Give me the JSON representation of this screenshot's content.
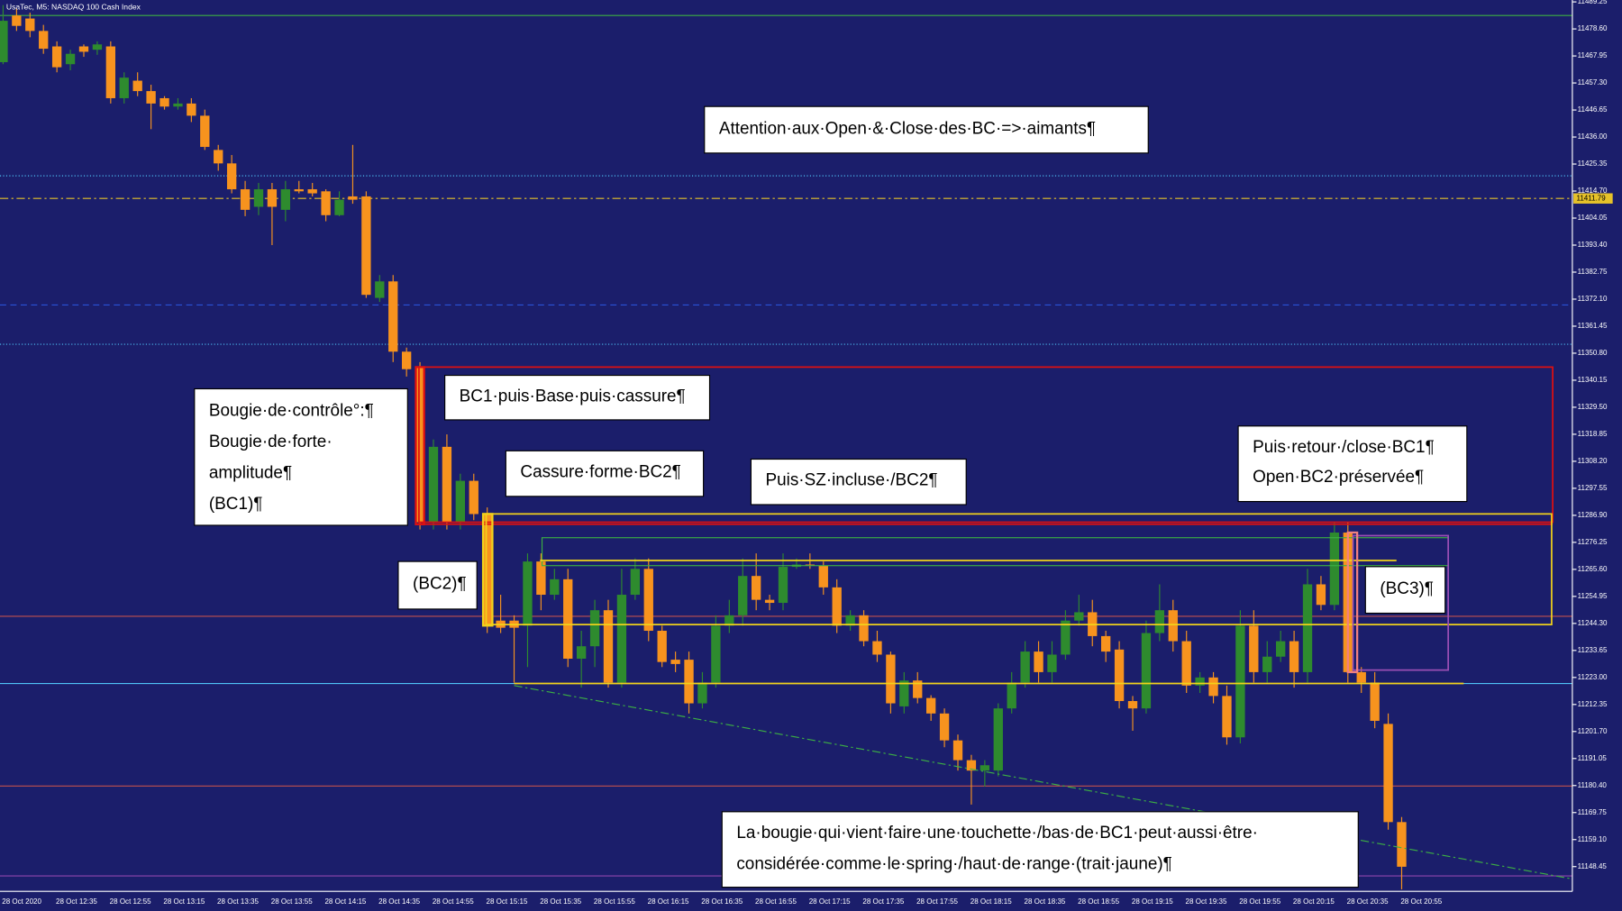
{
  "chart_data": {
    "type": "candlestick",
    "title": "UsaTec, M5: NASDAQ 100 Cash Index",
    "up_color": "#2e8b2e",
    "down_color": "#f7931e",
    "last_price": 11411.79,
    "last_price_color": "#e6c229",
    "ylim": [
      11138.7,
      11490.0
    ],
    "yticks": [
      11489.25,
      {
        "value": 11478.6,
        "label": "11478.60"
      },
      11467.95,
      {
        "value": 11457.3,
        "label": "11457.30"
      },
      11446.65,
      {
        "value": 11436,
        "label": "11436.00"
      },
      11425.35,
      {
        "value": 11414.7,
        "label": "11414.70"
      },
      11404.05,
      {
        "value": 11393.4,
        "label": "11393.40"
      },
      11382.75,
      {
        "value": 11372.1,
        "label": "11372.10"
      },
      11361.45,
      {
        "value": 11350.8,
        "label": "11350.80"
      },
      11340.15,
      {
        "value": 11329.5,
        "label": "11329.50"
      },
      11318.85,
      {
        "value": 11308.2,
        "label": "11308.20"
      },
      11297.55,
      {
        "value": 11286.9,
        "label": "11286.90"
      },
      11276.25,
      {
        "value": 11265.6,
        "label": "11265.60"
      },
      11254.95,
      {
        "value": 11244.3,
        "label": "11244.30"
      },
      11233.65,
      {
        "value": 11223,
        "label": "11223.00"
      },
      11212.35,
      {
        "value": 11201.7,
        "label": "11201.70"
      },
      11191.05,
      {
        "value": 11180.4,
        "label": "11180.40"
      },
      11169.75,
      {
        "value": 11159.1,
        "label": "11159.10"
      },
      11148.45
    ],
    "levels": [
      {
        "value": 11483.9,
        "color": "#3cb043",
        "dash": "solid"
      },
      {
        "value": 11420.7,
        "color": "#4fc3f7",
        "dash": "dotted"
      },
      {
        "value": 11369.8,
        "color": "#2a52d8",
        "dash": "dashed"
      },
      {
        "value": 11354.3,
        "color": "#4fc3f7",
        "dash": "dotted"
      },
      {
        "value": 11247.1,
        "color": "#c0504d",
        "dash": "solid"
      },
      {
        "value": 11220.6,
        "color": "#4fc3f7",
        "dash": "solid"
      },
      {
        "value": 11180.2,
        "color": "#c0504d",
        "dash": "solid"
      },
      {
        "value": 11144.8,
        "color": "#8e44ad",
        "dash": "solid"
      }
    ],
    "categories": [
      "28 Oct 2020",
      null,
      null,
      null,
      "28 Oct 12:35",
      null,
      null,
      null,
      "28 Oct 12:55",
      null,
      null,
      null,
      "28 Oct 13:15",
      null,
      null,
      null,
      "28 Oct 13:35",
      null,
      null,
      null,
      "28 Oct 13:55",
      null,
      null,
      null,
      "28 Oct 14:15",
      null,
      null,
      null,
      "28 Oct 14:35",
      null,
      null,
      null,
      "28 Oct 14:55",
      null,
      null,
      null,
      "28 Oct 15:15",
      null,
      null,
      null,
      "28 Oct 15:35",
      null,
      null,
      null,
      "28 Oct 15:55",
      null,
      null,
      null,
      "28 Oct 16:15",
      null,
      null,
      null,
      "28 Oct 16:35",
      null,
      null,
      null,
      "28 Oct 16:55",
      null,
      null,
      null,
      "28 Oct 17:15",
      null,
      null,
      null,
      "28 Oct 17:35",
      null,
      null,
      null,
      "28 Oct 17:55",
      null,
      null,
      null,
      "28 Oct 18:15",
      null,
      null,
      null,
      "28 Oct 18:35",
      null,
      null,
      null,
      "28 Oct 18:55",
      null,
      null,
      null,
      "28 Oct 19:15",
      null,
      null,
      null,
      "28 Oct 19:35",
      null,
      null,
      null,
      "28 Oct 19:55",
      null,
      null,
      null,
      "28 Oct 20:15",
      null,
      null,
      null,
      "28 Oct 20:35",
      null,
      null,
      null,
      "28 Oct 20:55"
    ],
    "open": [
      11465.5,
      11483.9,
      11482.7,
      11477.8,
      11471.7,
      11464.7,
      11471.7,
      11470.4,
      11471.7,
      11451.3,
      11458.2,
      11454.1,
      11451.3,
      11448.0,
      11449.2,
      11444.4,
      11430.9,
      11425.6,
      11415.4,
      11408.5,
      11415.4,
      11407.3,
      11415.4,
      11415.4,
      11414.6,
      11405.2,
      11412.6,
      11412.6,
      11372.6,
      11379.1,
      11351.4,
      11345.3,
      11284.2,
      11313.9,
      11284.2,
      11300.5,
      11287.4,
      11245.4,
      11245.4,
      11243.4,
      11268.7,
      11255.6,
      11261.7,
      11230.4,
      11235.3,
      11249.5,
      11221.0,
      11255.6,
      11265.8,
      11241.4,
      11230.0,
      11230.0,
      11212.8,
      11221.0,
      11243.4,
      11247.5,
      11263.0,
      11253.6,
      11252.4,
      11266.6,
      11267.5,
      11267.0,
      11258.5,
      11243.4,
      11247.5,
      11237.3,
      11232.0,
      11211.6,
      11221.8,
      11214.9,
      11208.8,
      11198.2,
      11190.4,
      11186.3,
      11186.3,
      11210.8,
      11221.0,
      11233.2,
      11225.1,
      11232.0,
      11245.4,
      11248.7,
      11239.3,
      11234.0,
      11213.7,
      11210.8,
      11240.5,
      11249.5,
      11237.3,
      11219.8,
      11223.0,
      11215.7,
      11199.4,
      11243.4,
      11225.1,
      11231.2,
      11237.3,
      11225.1,
      11259.7,
      11251.6,
      11280.1,
      11225.1,
      11221.0,
      11204.7,
      11166.0
    ],
    "high": [
      11488.0,
      11486.7,
      11485.0,
      11480.2,
      11473.7,
      11470.4,
      11472.5,
      11473.7,
      11473.7,
      11461.5,
      11461.5,
      11456.6,
      11452.1,
      11451.3,
      11451.3,
      11446.8,
      11432.9,
      11428.9,
      11418.7,
      11417.9,
      11417.9,
      11418.7,
      11418.7,
      11417.9,
      11415.4,
      11414.6,
      11432.9,
      11414.6,
      11381.6,
      11381.6,
      11353.0,
      11347.3,
      11316.8,
      11318.8,
      11303.3,
      11303.3,
      11290.0,
      11255.6,
      11247.5,
      11271.9,
      11271.9,
      11265.8,
      11265.8,
      11241.4,
      11253.6,
      11253.6,
      11265.8,
      11269.9,
      11269.9,
      11243.4,
      11233.2,
      11233.2,
      11225.1,
      11247.5,
      11253.6,
      11269.9,
      11271.9,
      11255.6,
      11271.9,
      11269.9,
      11271.9,
      11268.7,
      11261.7,
      11249.5,
      11249.5,
      11241.4,
      11233.2,
      11225.1,
      11225.1,
      11216.0,
      11210.8,
      11200.5,
      11192.5,
      11190.4,
      11212.8,
      11225.1,
      11237.3,
      11237.3,
      11237.3,
      11249.5,
      11255.6,
      11253.6,
      11241.4,
      11237.3,
      11215.7,
      11245.4,
      11259.7,
      11253.6,
      11241.4,
      11225.1,
      11225.1,
      11219.8,
      11249.5,
      11249.5,
      11237.3,
      11241.4,
      11241.4,
      11265.8,
      11263.0,
      11284.2,
      11284.2,
      11227.1,
      11225.1,
      11208.8,
      11168.0
    ],
    "low": [
      11464.7,
      11477.8,
      11475.3,
      11468.8,
      11461.5,
      11462.3,
      11467.6,
      11468.4,
      11449.2,
      11449.2,
      11452.1,
      11439.1,
      11446.8,
      11446.8,
      11441.9,
      11430.9,
      11422.7,
      11413.8,
      11404.8,
      11405.2,
      11393.4,
      11402.8,
      11413.8,
      11412.6,
      11402.8,
      11404.8,
      11409.7,
      11372.6,
      11371.0,
      11347.3,
      11341.6,
      11281.3,
      11281.3,
      11281.3,
      11281.3,
      11285.0,
      11240.5,
      11240.5,
      11221.0,
      11227.1,
      11249.5,
      11253.6,
      11227.1,
      11219.0,
      11227.1,
      11219.0,
      11219.0,
      11253.6,
      11237.3,
      11227.1,
      11225.1,
      11208.8,
      11210.8,
      11219.0,
      11240.5,
      11243.4,
      11249.5,
      11249.5,
      11249.5,
      11265.8,
      11265.8,
      11255.6,
      11240.5,
      11241.4,
      11235.3,
      11229.1,
      11208.8,
      11208.8,
      11212.8,
      11205.9,
      11195.5,
      11186.3,
      11172.9,
      11180.0,
      11184.0,
      11208.8,
      11219.0,
      11221.0,
      11221.0,
      11230.0,
      11243.4,
      11235.3,
      11229.1,
      11210.8,
      11202.0,
      11208.8,
      11237.3,
      11233.2,
      11216.9,
      11216.9,
      11212.8,
      11196.5,
      11197.0,
      11221.0,
      11221.0,
      11229.1,
      11219.0,
      11221.0,
      11249.5,
      11249.5,
      11221.0,
      11216.9,
      11203.0,
      11163.0,
      11139.5
    ],
    "close": [
      11481.8,
      11479.8,
      11477.8,
      11470.8,
      11463.5,
      11468.8,
      11469.6,
      11472.5,
      11451.3,
      11459.4,
      11454.1,
      11449.2,
      11448.0,
      11449.2,
      11444.4,
      11432.1,
      11425.6,
      11415.4,
      11407.3,
      11415.4,
      11408.5,
      11415.4,
      11414.6,
      11413.8,
      11405.2,
      11411.3,
      11411.3,
      11373.8,
      11379.1,
      11351.4,
      11344.5,
      11284.2,
      11313.9,
      11284.2,
      11300.5,
      11287.4,
      11243.4,
      11242.6,
      11242.6,
      11268.7,
      11255.6,
      11261.7,
      11230.4,
      11235.3,
      11249.5,
      11221.0,
      11255.6,
      11265.8,
      11241.4,
      11229.1,
      11228.3,
      11212.8,
      11221.0,
      11243.4,
      11247.5,
      11263.0,
      11253.6,
      11252.4,
      11266.6,
      11267.5,
      11267.0,
      11258.5,
      11243.4,
      11247.5,
      11237.3,
      11232.0,
      11212.8,
      11221.8,
      11214.9,
      11208.8,
      11198.2,
      11190.4,
      11186.3,
      11188.4,
      11210.8,
      11221.0,
      11233.2,
      11225.1,
      11232.0,
      11245.4,
      11248.7,
      11239.3,
      11233.2,
      11213.7,
      11210.8,
      11240.5,
      11249.5,
      11237.3,
      11219.8,
      11223.0,
      11215.7,
      11199.4,
      11243.4,
      11225.1,
      11231.2,
      11237.3,
      11225.1,
      11259.7,
      11251.6,
      11280.1,
      11225.1,
      11221.0,
      11205.9,
      11166.0,
      11148.4
    ],
    "annotations": [
      [
        "Attention·aux·Open·&·Close·des·BC·=>·aimants¶"
      ],
      [
        "Bougie·de·contrôle°:¶",
        "Bougie·de·forte·",
        "amplitude¶",
        "(BC1)¶"
      ],
      [
        "BC1·puis·Base·puis·cassure¶"
      ],
      [
        "Cassure·forme·BC2¶"
      ],
      [
        "Puis·SZ·incluse·/BC2¶"
      ],
      [
        "Puis·retour·/close·BC1¶",
        "Open·BC2·préservée¶"
      ],
      [
        "(BC2)¶"
      ],
      [
        "(BC3)¶"
      ],
      [
        "La·bougie·qui·vient·faire·une·touchette·/bas·de·BC1·peut·aussi·être·",
        "considérée·comme·le·spring·/haut·de·range·(trait·jaune)¶"
      ]
    ]
  }
}
